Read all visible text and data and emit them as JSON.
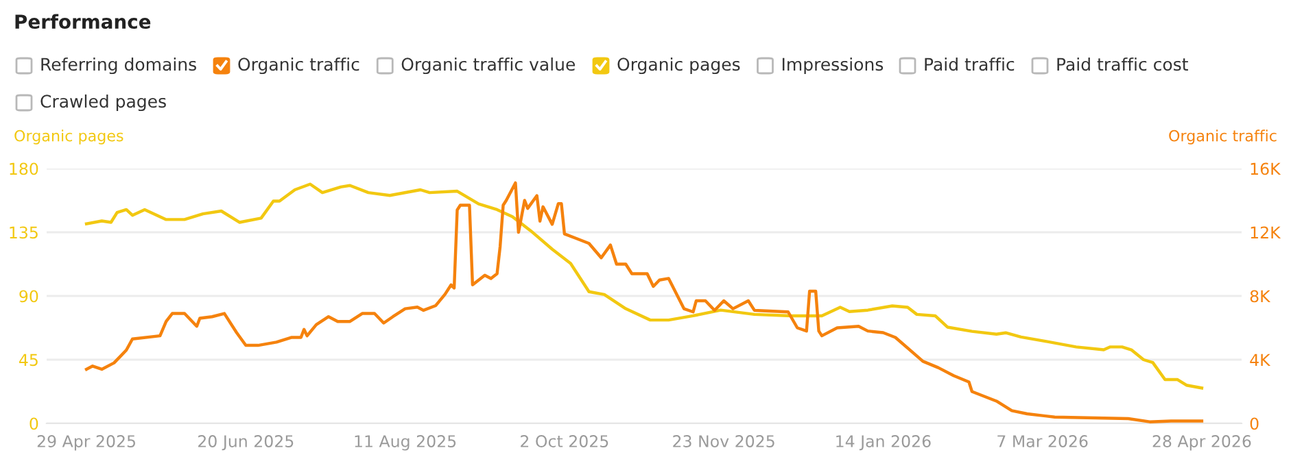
{
  "chart_data": {
    "type": "line",
    "title": "Performance",
    "annotations": [
      "Referring domains",
      "Organic traffic value",
      "Impressions",
      "Paid traffic",
      "Paid traffic cost",
      "Crawled pages"
    ],
    "ylabel": "Organic pages",
    "y2label": "Organic traffic",
    "series": [
      {
        "name": "Organic pages",
        "color": "#f2c811",
        "x": [
          "2025-04-29",
          "2025-05-04",
          "2025-05-07",
          "2025-05-09",
          "2025-05-12",
          "2025-05-14",
          "2025-05-18",
          "2025-05-25",
          "2025-05-31",
          "2025-06-06",
          "2025-06-12",
          "2025-06-18",
          "2025-06-25",
          "2025-06-29",
          "2025-07-01",
          "2025-07-06",
          "2025-07-11",
          "2025-07-15",
          "2025-07-21",
          "2025-07-24",
          "2025-07-30",
          "2025-08-06",
          "2025-08-16",
          "2025-08-19",
          "2025-08-28",
          "2025-09-04",
          "2025-09-10",
          "2025-09-15",
          "2025-09-21",
          "2025-09-28",
          "2025-10-04",
          "2025-10-10",
          "2025-10-15",
          "2025-10-22",
          "2025-10-30",
          "2025-11-05",
          "2025-11-13",
          "2025-11-22",
          "2025-12-03",
          "2025-12-15",
          "2025-12-25",
          "2025-12-31",
          "2026-01-03",
          "2026-01-09",
          "2026-01-17",
          "2026-01-22",
          "2026-01-25",
          "2026-01-31",
          "2026-02-04",
          "2026-02-12",
          "2026-02-20",
          "2026-02-23",
          "2026-02-28",
          "2026-03-08",
          "2026-03-18",
          "2026-03-27",
          "2026-03-29",
          "2026-04-02",
          "2026-04-05",
          "2026-04-09",
          "2026-04-12",
          "2026-04-16",
          "2026-04-20",
          "2026-04-23",
          "2026-04-28"
        ],
        "values": [
          141,
          143,
          142,
          149,
          151,
          147,
          151,
          144,
          144,
          148,
          150,
          142,
          145,
          157,
          157,
          165,
          169,
          163,
          167,
          168,
          163,
          161,
          165,
          163,
          164,
          155,
          151,
          146,
          136,
          123,
          113,
          93,
          91,
          81,
          73,
          73,
          76,
          80,
          77,
          76,
          76,
          82,
          79,
          80,
          83,
          82,
          77,
          76,
          68,
          65,
          63,
          64,
          61,
          58,
          54,
          52,
          54,
          54,
          52,
          45,
          43,
          31,
          31,
          27,
          25
        ]
      },
      {
        "name": "Organic traffic",
        "color": "#f5820d",
        "axis": "y2",
        "x": [
          "2025-04-29",
          "2025-05-01",
          "2025-05-04",
          "2025-05-08",
          "2025-05-10",
          "2025-05-12",
          "2025-05-14",
          "2025-05-23",
          "2025-05-25",
          "2025-05-27",
          "2025-05-31",
          "2025-06-04",
          "2025-06-05",
          "2025-06-09",
          "2025-06-13",
          "2025-06-17",
          "2025-06-20",
          "2025-06-24",
          "2025-06-30",
          "2025-07-05",
          "2025-07-08",
          "2025-07-09",
          "2025-07-10",
          "2025-07-13",
          "2025-07-17",
          "2025-07-20",
          "2025-07-24",
          "2025-07-28",
          "2025-08-01",
          "2025-08-04",
          "2025-08-07",
          "2025-08-11",
          "2025-08-15",
          "2025-08-17",
          "2025-08-21",
          "2025-08-24",
          "2025-08-26",
          "2025-08-27",
          "2025-08-28",
          "2025-08-29",
          "2025-09-01",
          "2025-09-02",
          "2025-09-06",
          "2025-09-08",
          "2025-09-10",
          "2025-09-11",
          "2025-09-12",
          "2025-09-13",
          "2025-09-16",
          "2025-09-17",
          "2025-09-19",
          "2025-09-20",
          "2025-09-23",
          "2025-09-24",
          "2025-09-25",
          "2025-09-28",
          "2025-09-30",
          "2025-10-01",
          "2025-10-02",
          "2025-10-06",
          "2025-10-10",
          "2025-10-14",
          "2025-10-17",
          "2025-10-19",
          "2025-10-22",
          "2025-10-24",
          "2025-10-29",
          "2025-10-31",
          "2025-11-02",
          "2025-11-05",
          "2025-11-10",
          "2025-11-13",
          "2025-11-14",
          "2025-11-17",
          "2025-11-20",
          "2025-11-23",
          "2025-11-26",
          "2025-12-01",
          "2025-12-03",
          "2025-12-14",
          "2025-12-17",
          "2025-12-20",
          "2025-12-21",
          "2025-12-23",
          "2025-12-24",
          "2025-12-25",
          "2025-12-30",
          "2026-01-06",
          "2026-01-09",
          "2026-01-14",
          "2026-01-18",
          "2026-01-27",
          "2026-02-01",
          "2026-02-06",
          "2026-02-11",
          "2026-02-12",
          "2026-02-20",
          "2026-02-25",
          "2026-03-02",
          "2026-03-11",
          "2026-04-04",
          "2026-04-11",
          "2026-04-18",
          "2026-04-28"
        ],
        "values": [
          3400,
          3600,
          3400,
          3800,
          4200,
          4600,
          5300,
          5500,
          6400,
          6900,
          6900,
          6100,
          6600,
          6700,
          6900,
          5700,
          4900,
          4900,
          5100,
          5400,
          5400,
          5900,
          5500,
          6200,
          6700,
          6400,
          6400,
          6900,
          6900,
          6300,
          6700,
          7200,
          7300,
          7100,
          7400,
          8100,
          8700,
          8500,
          13400,
          13700,
          13700,
          8700,
          9300,
          9100,
          9400,
          11100,
          13700,
          14000,
          15100,
          12000,
          14000,
          13500,
          14300,
          12700,
          13600,
          12500,
          13800,
          13800,
          11900,
          11600,
          11300,
          10400,
          11200,
          10000,
          10000,
          9400,
          9400,
          8600,
          9000,
          9100,
          7200,
          7000,
          7700,
          7700,
          7100,
          7700,
          7200,
          7700,
          7100,
          7000,
          6000,
          5800,
          8300,
          8300,
          5800,
          5500,
          6000,
          6100,
          5800,
          5700,
          5400,
          3900,
          3500,
          3000,
          2600,
          2000,
          1400,
          800,
          600,
          400,
          300,
          100,
          150,
          150
        ]
      }
    ],
    "xlim": [
      "2025-04-16",
      "2026-05-11"
    ],
    "xticks": [
      {
        "value": "2025-04-29",
        "label": "29 Apr 2025"
      },
      {
        "value": "2025-06-20",
        "label": "20 Jun 2025"
      },
      {
        "value": "2025-08-11",
        "label": "11 Aug 2025"
      },
      {
        "value": "2025-10-02",
        "label": "2 Oct 2025"
      },
      {
        "value": "2025-11-23",
        "label": "23 Nov 2025"
      },
      {
        "value": "2026-01-14",
        "label": "14 Jan 2026"
      },
      {
        "value": "2026-03-07",
        "label": "7 Mar 2026"
      },
      {
        "value": "2026-04-28",
        "label": "28 Apr 2026"
      }
    ],
    "ylim": [
      0,
      180
    ],
    "yticks": [
      0,
      45,
      90,
      135,
      180
    ],
    "y2lim": [
      0,
      16000
    ],
    "y2ticks": [
      {
        "value": 0,
        "label": "0"
      },
      {
        "value": 4000,
        "label": "4K"
      },
      {
        "value": 8000,
        "label": "8K"
      },
      {
        "value": 12000,
        "label": "12K"
      },
      {
        "value": 16000,
        "label": "16K"
      }
    ],
    "grid": "y",
    "legend": "top",
    "marker": "none",
    "line_style": "solid"
  }
}
